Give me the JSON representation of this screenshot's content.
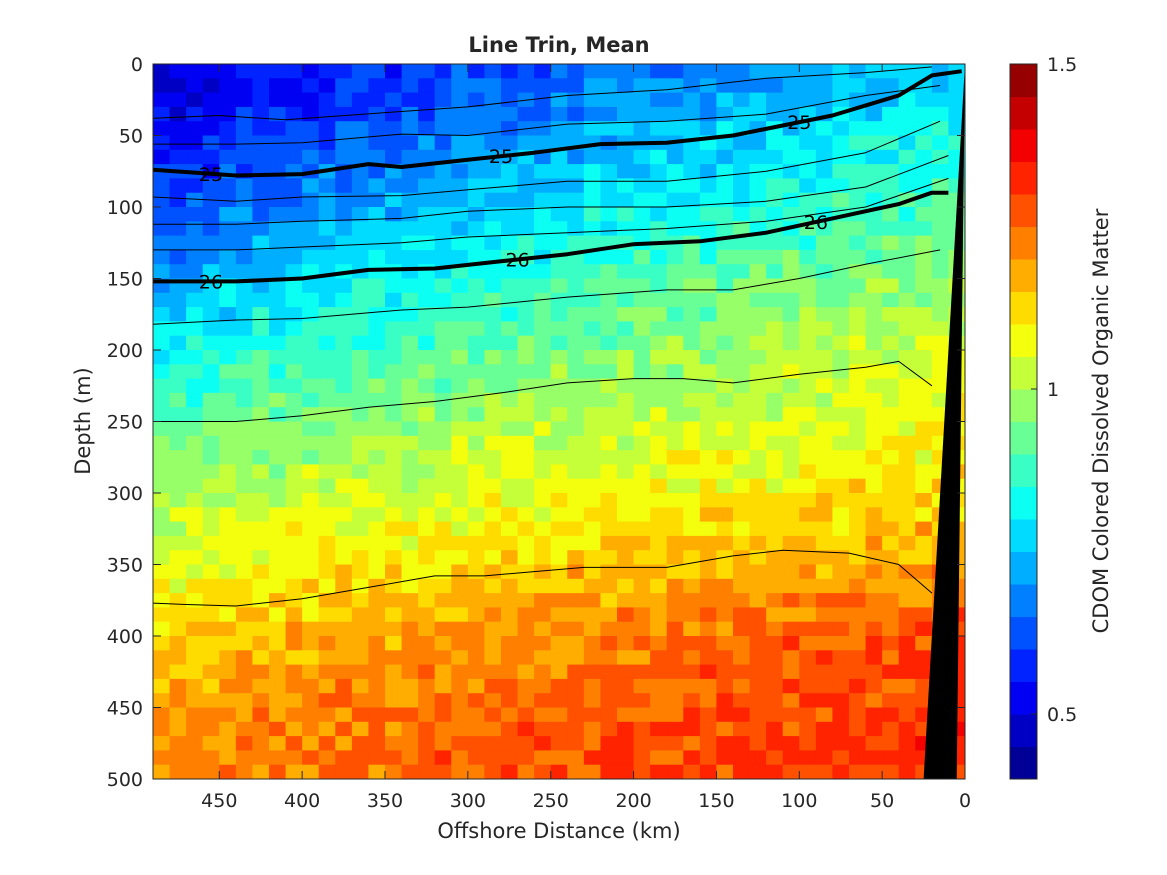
{
  "chart_data": {
    "type": "heatmap",
    "title": "Line Trin, Mean",
    "xlabel": "Offshore Distance (km)",
    "ylabel": "Depth (m)",
    "colorbar_label": "CDOM Colored Dissolved Organic Matter",
    "xlim": [
      490,
      0
    ],
    "ylim": [
      0,
      500
    ],
    "y_reversed": true,
    "x_reversed": true,
    "x_ticks": [
      450,
      400,
      350,
      300,
      250,
      200,
      150,
      100,
      50,
      0
    ],
    "x_tick_labels": [
      "450",
      "400",
      "350",
      "300",
      "250",
      "200",
      "150",
      "100",
      "50",
      "0"
    ],
    "y_ticks": [
      0,
      50,
      100,
      150,
      200,
      250,
      300,
      350,
      400,
      450,
      500
    ],
    "y_tick_labels": [
      "0",
      "50",
      "100",
      "150",
      "200",
      "250",
      "300",
      "350",
      "400",
      "450",
      "500"
    ],
    "colorbar": {
      "range": [
        0.4,
        1.5
      ],
      "ticks": [
        0.5,
        1,
        1.5
      ],
      "tick_labels": [
        "0.5",
        "1",
        "1.5"
      ],
      "levels": 22,
      "colormap": "jet"
    },
    "field_profile": {
      "depth": [
        0,
        25,
        50,
        75,
        100,
        150,
        200,
        250,
        300,
        350,
        400,
        450,
        500
      ],
      "offshore_value": [
        0.45,
        0.48,
        0.52,
        0.55,
        0.6,
        0.7,
        0.78,
        0.9,
        0.98,
        1.05,
        1.12,
        1.18,
        1.2
      ],
      "nearshore_value": [
        0.75,
        0.8,
        0.83,
        0.86,
        0.9,
        0.98,
        1.04,
        1.08,
        1.12,
        1.2,
        1.28,
        1.3,
        1.32
      ]
    },
    "contours": [
      {
        "label": "25",
        "bold": true,
        "x": [
          490,
          440,
          400,
          360,
          340,
          300,
          260,
          220,
          180,
          140,
          110,
          80,
          40,
          20,
          2
        ],
        "depth": [
          74,
          78,
          77,
          70,
          72,
          67,
          62,
          56,
          55,
          50,
          43,
          36,
          22,
          8,
          5
        ],
        "label_x": [
          455,
          280,
          100
        ]
      },
      {
        "label": "26",
        "bold": true,
        "x": [
          490,
          440,
          400,
          360,
          320,
          280,
          240,
          200,
          160,
          120,
          80,
          40,
          20,
          10
        ],
        "depth": [
          152,
          152,
          150,
          144,
          143,
          138,
          133,
          126,
          124,
          118,
          108,
          98,
          90,
          90
        ],
        "label_x": [
          455,
          270,
          90
        ]
      },
      {
        "label": "",
        "bold": false,
        "x": [
          490,
          450,
          410,
          350,
          300,
          240,
          180,
          120,
          60,
          20
        ],
        "depth": [
          38,
          36,
          39,
          34,
          30,
          22,
          18,
          10,
          6,
          2
        ]
      },
      {
        "label": "",
        "bold": false,
        "x": [
          490,
          440,
          400,
          340,
          300,
          240,
          180,
          120,
          60,
          15
        ],
        "depth": [
          56,
          56,
          55,
          49,
          50,
          42,
          40,
          35,
          22,
          15
        ]
      },
      {
        "label": "",
        "bold": false,
        "x": [
          490,
          440,
          400,
          340,
          300,
          240,
          180,
          120,
          60,
          15
        ],
        "depth": [
          93,
          96,
          93,
          92,
          88,
          82,
          82,
          75,
          62,
          40
        ]
      },
      {
        "label": "",
        "bold": false,
        "x": [
          490,
          440,
          400,
          340,
          300,
          240,
          180,
          120,
          60,
          10
        ],
        "depth": [
          112,
          112,
          110,
          108,
          103,
          100,
          100,
          96,
          86,
          64
        ]
      },
      {
        "label": "",
        "bold": false,
        "x": [
          490,
          440,
          400,
          340,
          300,
          240,
          180,
          120,
          60,
          10
        ],
        "depth": [
          130,
          130,
          128,
          125,
          121,
          118,
          115,
          110,
          100,
          80
        ]
      },
      {
        "label": "",
        "bold": false,
        "x": [
          490,
          440,
          400,
          340,
          300,
          240,
          180,
          140,
          100,
          60,
          15
        ],
        "depth": [
          182,
          179,
          178,
          172,
          170,
          163,
          158,
          158,
          150,
          140,
          130
        ]
      },
      {
        "label": "",
        "bold": false,
        "x": [
          490,
          440,
          400,
          360,
          320,
          280,
          240,
          200,
          170,
          140,
          100,
          60,
          40,
          20
        ],
        "depth": [
          250,
          250,
          246,
          240,
          236,
          230,
          223,
          220,
          220,
          223,
          217,
          212,
          208,
          225
        ]
      },
      {
        "label": "",
        "bold": false,
        "x": [
          490,
          470,
          440,
          400,
          360,
          320,
          290,
          260,
          230,
          180,
          140,
          110,
          70,
          40,
          20
        ],
        "depth": [
          377,
          378,
          379,
          374,
          366,
          358,
          358,
          355,
          352,
          352,
          344,
          340,
          342,
          350,
          370
        ]
      }
    ],
    "seafloor": {
      "x": [
        0,
        25,
        5
      ],
      "depth": [
        0,
        500,
        500
      ]
    }
  }
}
